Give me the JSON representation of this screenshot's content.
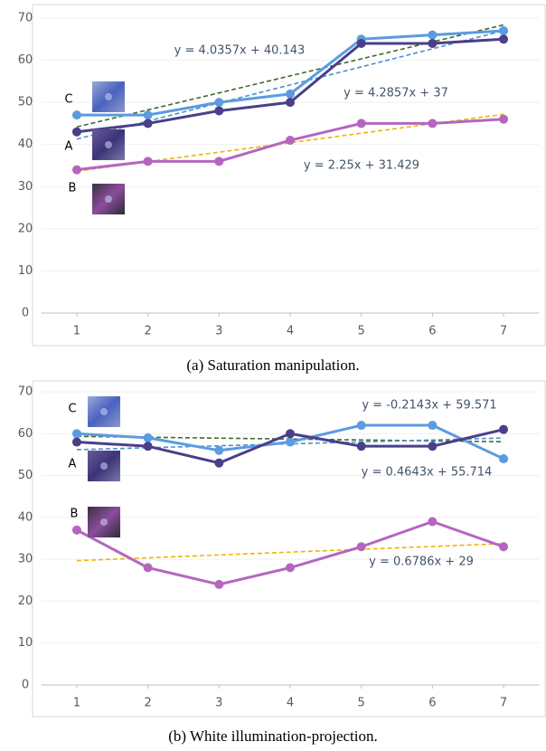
{
  "chart_data": [
    {
      "type": "line",
      "caption": "(a) Saturation manipulation.",
      "x": [
        1,
        2,
        3,
        4,
        5,
        6,
        7
      ],
      "xticks": [
        1,
        2,
        3,
        4,
        5,
        6,
        7
      ],
      "xlim": [
        0.5,
        7.5
      ],
      "ylim": [
        0,
        70
      ],
      "yticks": [
        0,
        10,
        20,
        30,
        40,
        50,
        60,
        70
      ],
      "grid": true,
      "series": [
        {
          "name": "C",
          "color": "#5b9be0",
          "values": [
            47,
            47,
            50,
            52,
            65,
            66,
            67
          ],
          "trendline": {
            "equation": "y = 4.0357x + 40.143",
            "slope": 4.0357,
            "intercept": 40.143,
            "color": "#3f6b2a"
          }
        },
        {
          "name": "A",
          "color": "#4a3f8a",
          "values": [
            43,
            45,
            48,
            50,
            64,
            64,
            65
          ],
          "trendline": {
            "equation": "y = 4.2857x + 37",
            "slope": 4.2857,
            "intercept": 37,
            "color": "#4a90d0"
          }
        },
        {
          "name": "B",
          "color": "#b565c0",
          "values": [
            34,
            36,
            36,
            41,
            45,
            45,
            46
          ],
          "trendline": {
            "equation": "y = 2.25x + 31.429",
            "slope": 2.25,
            "intercept": 31.429,
            "color": "#f0b400"
          }
        }
      ]
    },
    {
      "type": "line",
      "caption": "(b) White illumination-projection.",
      "x": [
        1,
        2,
        3,
        4,
        5,
        6,
        7
      ],
      "xticks": [
        1,
        2,
        3,
        4,
        5,
        6,
        7
      ],
      "xlim": [
        0.5,
        7.5
      ],
      "ylim": [
        0,
        70
      ],
      "yticks": [
        0,
        10,
        20,
        30,
        40,
        50,
        60,
        70
      ],
      "grid": true,
      "series": [
        {
          "name": "C",
          "color": "#5b9be0",
          "values": [
            60,
            59,
            56,
            58,
            62,
            62,
            54
          ],
          "trendline": {
            "equation": "y = -0.2143x + 59.571",
            "slope": -0.2143,
            "intercept": 59.571,
            "color": "#3f6b2a"
          }
        },
        {
          "name": "A",
          "color": "#4a3f8a",
          "values": [
            58,
            57,
            53,
            60,
            57,
            57,
            61
          ],
          "trendline": {
            "equation": "y = 0.4643x + 55.714",
            "slope": 0.4643,
            "intercept": 55.714,
            "color": "#4a90d0"
          }
        },
        {
          "name": "B",
          "color": "#b565c0",
          "values": [
            37,
            28,
            24,
            28,
            33,
            39,
            33
          ],
          "trendline": {
            "equation": "y = 0.6786x + 29",
            "slope": 0.6786,
            "intercept": 29,
            "color": "#f0b400"
          }
        }
      ]
    }
  ]
}
